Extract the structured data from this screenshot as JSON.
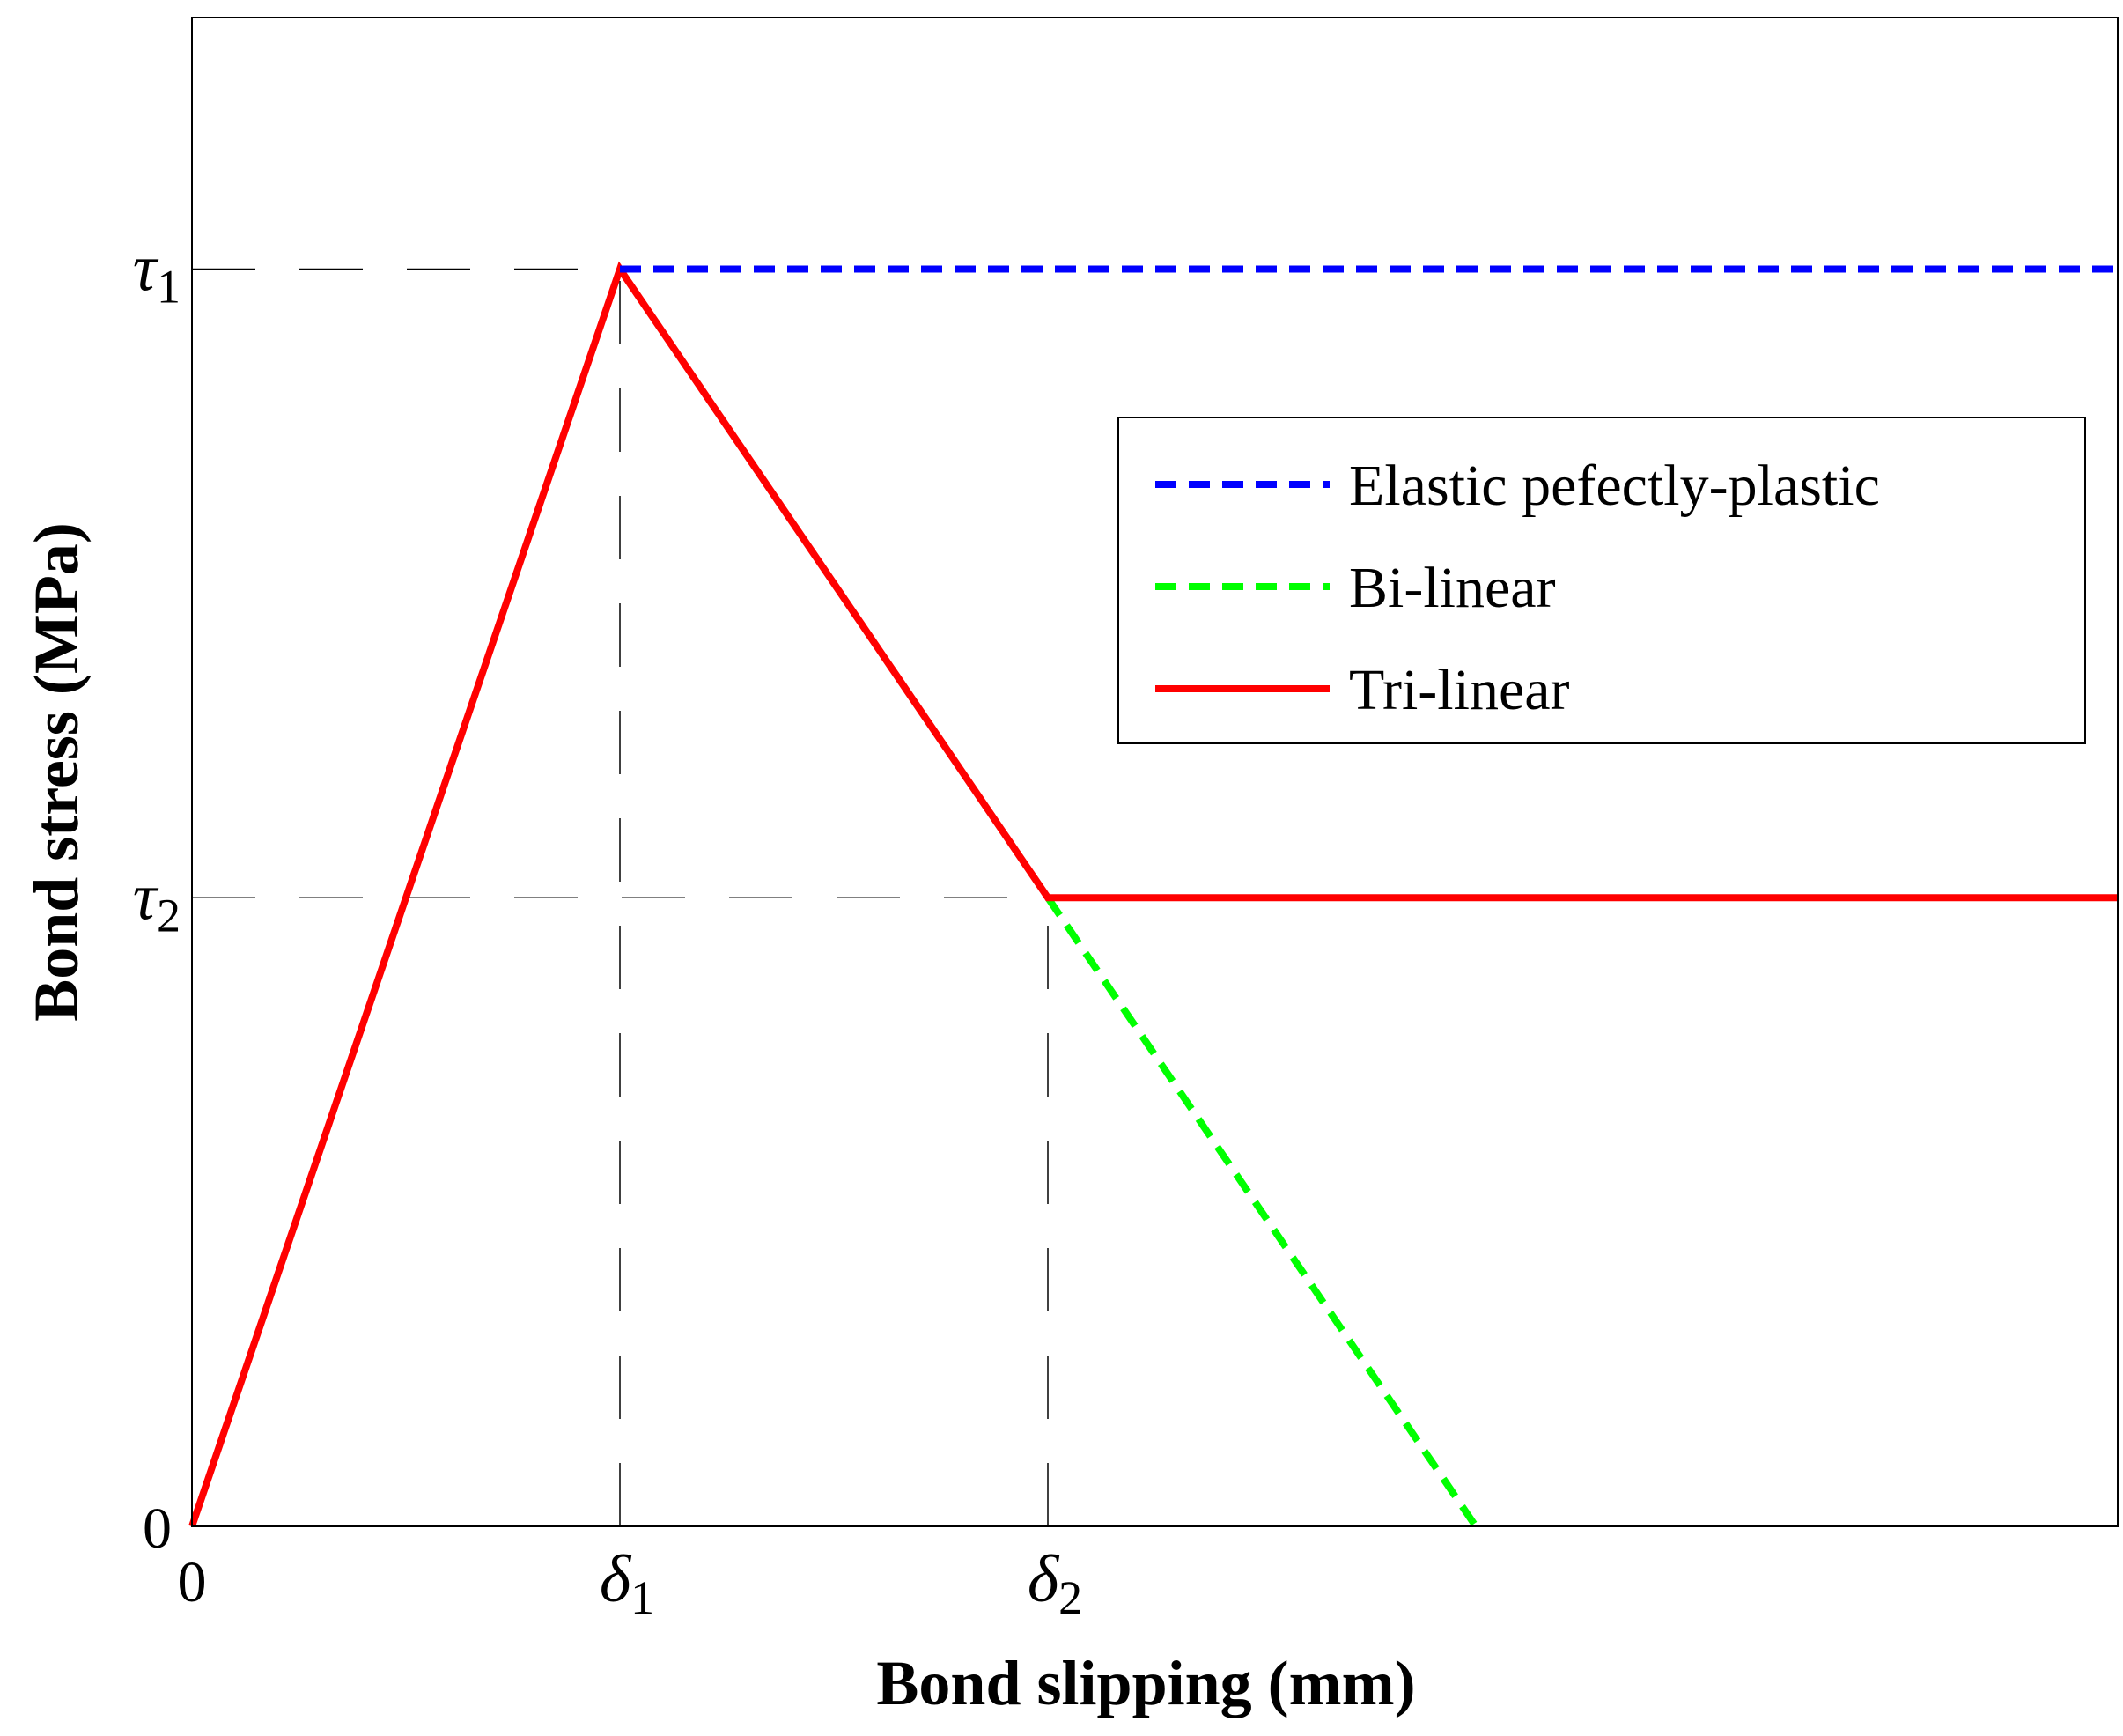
{
  "chart_data": {
    "type": "line",
    "title": "",
    "xlabel": "Bond slipping (mm)",
    "ylabel": "Bond stress (MPa)",
    "xlim": [
      0,
      4.5
    ],
    "ylim": [
      0,
      1.2
    ],
    "x_ticks": [
      {
        "value": 0,
        "label": "0"
      },
      {
        "value": 1,
        "symbol": "δ",
        "subscript": "1"
      },
      {
        "value": 2,
        "symbol": "δ",
        "subscript": "2"
      }
    ],
    "y_ticks": [
      {
        "value": 0,
        "label": "0"
      },
      {
        "value": 0.5,
        "symbol": "τ",
        "subscript": "2"
      },
      {
        "value": 1,
        "symbol": "τ",
        "subscript": "1"
      }
    ],
    "series": [
      {
        "name": "Elastic pefectly-plastic",
        "color": "#0000ff",
        "style": "dashed",
        "x": [
          1,
          4.5
        ],
        "y": [
          1,
          1
        ]
      },
      {
        "name": "Bi-linear",
        "color": "#00ff00",
        "style": "dashed",
        "x": [
          2,
          3
        ],
        "y": [
          0.5,
          0
        ]
      },
      {
        "name": "Tri-linear",
        "color": "#ff0000",
        "style": "solid",
        "x": [
          0,
          1,
          2,
          4.5
        ],
        "y": [
          0,
          1,
          0.5,
          0.5
        ]
      }
    ],
    "guides": [
      {
        "orientation": "horizontal",
        "value": 1,
        "to_x": 1
      },
      {
        "orientation": "horizontal",
        "value": 0.5,
        "to_x": 2
      },
      {
        "orientation": "vertical",
        "value": 1,
        "to_y": 1
      },
      {
        "orientation": "vertical",
        "value": 2,
        "to_y": 0.5
      }
    ],
    "legend": {
      "position": "center-right"
    },
    "grid": false
  }
}
